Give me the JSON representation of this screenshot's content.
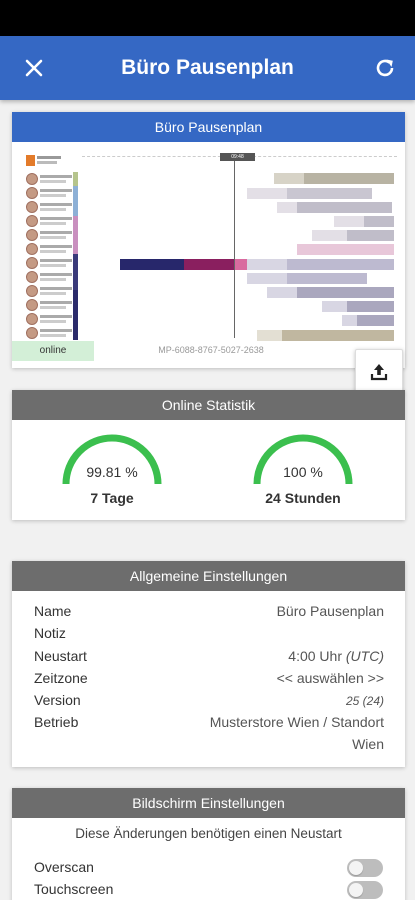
{
  "app": {
    "title": "Büro Pausenplan",
    "close_icon": "close-icon",
    "refresh_icon": "refresh-icon",
    "accent_color": "#3568c4"
  },
  "preview": {
    "header": "Büro Pausenplan",
    "time_marker": "09:48",
    "status": "online",
    "serial": "MP-6088-8767-5027-2638",
    "upload_icon": "upload-icon"
  },
  "online_stats": {
    "header": "Online Statistik",
    "gauges": [
      {
        "value": "99.81 %",
        "label": "7 Tage",
        "fraction": 0.9981
      },
      {
        "value": "100 %",
        "label": "24 Stunden",
        "fraction": 1.0
      }
    ],
    "gauge_color": "#3bbf4e"
  },
  "general_settings": {
    "header": "Allgemeine Einstellungen",
    "name_label": "Name",
    "name_value": "Büro Pausenplan",
    "note_label": "Notiz",
    "note_value": "",
    "restart_label": "Neustart",
    "restart_value": "4:00 Uhr",
    "restart_tz": "(UTC)",
    "timezone_label": "Zeitzone",
    "timezone_value": "<< auswählen >>",
    "version_label": "Version",
    "version_value": "25 (24)",
    "company_label": "Betrieb",
    "company_value_line1": "Musterstore Wien / Standort",
    "company_value_line2": "Wien"
  },
  "display_settings": {
    "header": "Bildschirm Einstellungen",
    "notice": "Diese Änderungen benötigen einen Neustart",
    "overscan_label": "Overscan",
    "touchscreen_label": "Touchscreen"
  }
}
